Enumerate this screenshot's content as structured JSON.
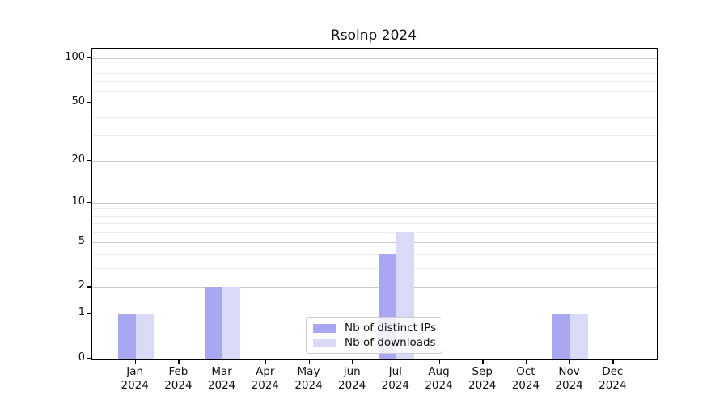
{
  "chart_data": {
    "type": "bar",
    "title": "Rsolnp 2024",
    "categories": [
      "Jan",
      "Feb",
      "Mar",
      "Apr",
      "May",
      "Jun",
      "Jul",
      "Aug",
      "Sep",
      "Oct",
      "Nov",
      "Dec"
    ],
    "category_year": "2024",
    "series": [
      {
        "name": "Nb of distinct IPs",
        "color": "#a8a8f2",
        "values": [
          1,
          0,
          2,
          0,
          0,
          0,
          4,
          0,
          0,
          0,
          1,
          0
        ]
      },
      {
        "name": "Nb of downloads",
        "color": "#d9d9f8",
        "values": [
          1,
          0,
          2,
          0,
          0,
          0,
          6,
          0,
          0,
          0,
          1,
          0
        ]
      }
    ],
    "y_axis": {
      "scale": "log1p",
      "lim": [
        0,
        100
      ],
      "major_ticks": [
        0,
        1,
        2,
        5,
        10,
        20,
        50,
        100
      ],
      "minor_gridlines": [
        3,
        4,
        6,
        7,
        8,
        9,
        30,
        40,
        60,
        70,
        80,
        90
      ]
    },
    "xlabel": "",
    "ylabel": "",
    "grid": "on",
    "legend_position": "lower center",
    "colors": {
      "major_grid": "#c9c9c9",
      "minor_grid": "#ededed",
      "spine": "#000000",
      "text": "#111111",
      "legend_border": "#cccccc"
    }
  }
}
